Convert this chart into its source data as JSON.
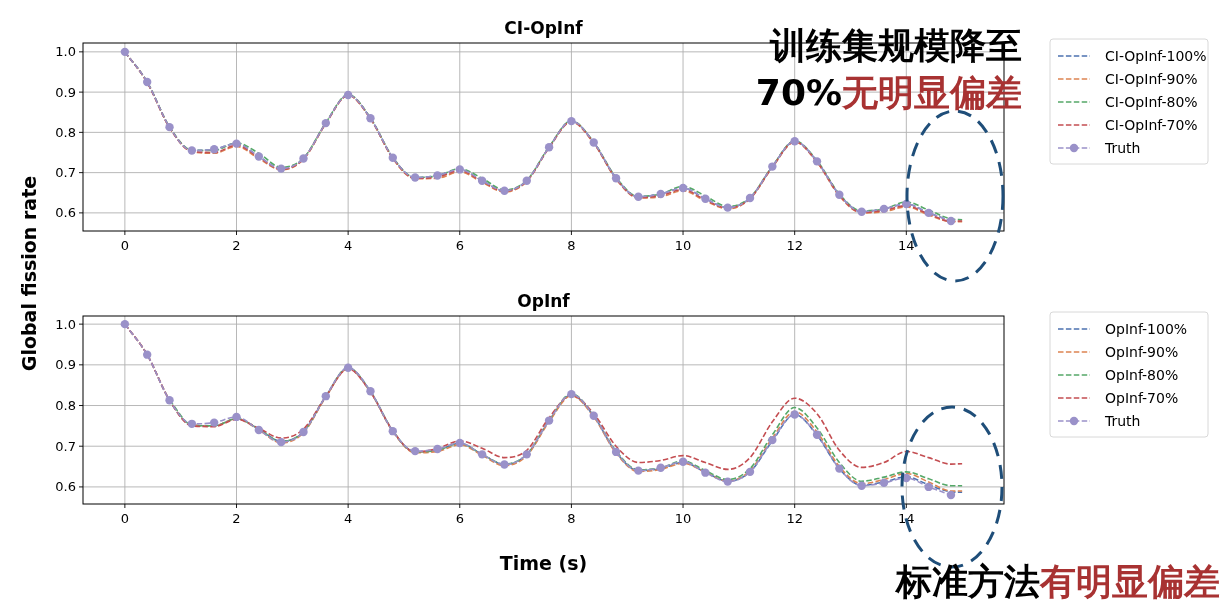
{
  "chart_data": [
    {
      "type": "line",
      "title": "CI-OpInf",
      "ylabel": "Global fission rate",
      "grid": true,
      "legend": "right",
      "line_style": "dashed",
      "xlim": [
        -0.75,
        15.75
      ],
      "ylim": [
        0.555,
        1.022
      ],
      "xticks": [
        0,
        2,
        4,
        6,
        8,
        10,
        12,
        14
      ],
      "yticks": [
        {
          "value": 0.6,
          "label": "0.6"
        },
        {
          "value": 0.7,
          "label": "0.7"
        },
        {
          "value": 0.8,
          "label": "0.8"
        },
        {
          "value": 0.9,
          "label": "0.9"
        },
        {
          "value": 1.0,
          "label": "1.0"
        }
      ],
      "annotations": [
        "训练集规模降至",
        "70%",
        "无明显偏差"
      ],
      "x": [
        0,
        0.4,
        0.8,
        1.2,
        1.6,
        2.0,
        2.4,
        2.8,
        3.2,
        3.6,
        4.0,
        4.4,
        4.8,
        5.2,
        5.6,
        6.0,
        6.4,
        6.8,
        7.2,
        7.6,
        8.0,
        8.4,
        8.8,
        9.2,
        9.6,
        10.0,
        10.4,
        10.8,
        11.2,
        11.6,
        12.0,
        12.4,
        12.8,
        13.2,
        13.6,
        14.0,
        14.4,
        14.8,
        15.0
      ],
      "series": [
        {
          "name": "CI-OpInf-100%",
          "color": "#4c72b0",
          "values": [
            1.0,
            0.925,
            0.813,
            0.755,
            0.758,
            0.772,
            0.74,
            0.71,
            0.735,
            0.823,
            0.893,
            0.835,
            0.737,
            0.688,
            0.693,
            0.708,
            0.68,
            0.655,
            0.68,
            0.763,
            0.828,
            0.775,
            0.686,
            0.64,
            0.647,
            0.662,
            0.635,
            0.613,
            0.637,
            0.715,
            0.778,
            0.728,
            0.645,
            0.603,
            0.61,
            0.622,
            0.6,
            0.58,
            null
          ]
        },
        {
          "name": "CI-OpInf-90%",
          "color": "#dd8452",
          "values": [
            1.0,
            0.924,
            0.812,
            0.752,
            0.748,
            0.765,
            0.735,
            0.707,
            0.733,
            0.822,
            0.892,
            0.834,
            0.735,
            0.685,
            0.686,
            0.702,
            0.676,
            0.652,
            0.678,
            0.762,
            0.826,
            0.773,
            0.684,
            0.637,
            0.64,
            0.655,
            0.63,
            0.61,
            0.635,
            0.713,
            0.776,
            0.726,
            0.642,
            0.6,
            0.603,
            0.615,
            0.595,
            0.578,
            0.578
          ]
        },
        {
          "name": "CI-OpInf-80%",
          "color": "#55a868",
          "values": [
            1.0,
            0.925,
            0.814,
            0.756,
            0.755,
            0.774,
            0.748,
            0.713,
            0.736,
            0.824,
            0.894,
            0.836,
            0.738,
            0.688,
            0.692,
            0.71,
            0.686,
            0.657,
            0.681,
            0.764,
            0.829,
            0.776,
            0.688,
            0.641,
            0.647,
            0.666,
            0.642,
            0.616,
            0.638,
            0.716,
            0.779,
            0.73,
            0.647,
            0.605,
            0.61,
            0.627,
            0.607,
            0.585,
            0.583
          ]
        },
        {
          "name": "CI-OpInf-70%",
          "color": "#c44e52",
          "values": [
            1.0,
            0.924,
            0.812,
            0.753,
            0.75,
            0.768,
            0.738,
            0.708,
            0.734,
            0.822,
            0.892,
            0.834,
            0.736,
            0.686,
            0.689,
            0.705,
            0.678,
            0.654,
            0.679,
            0.762,
            0.827,
            0.774,
            0.685,
            0.638,
            0.643,
            0.658,
            0.632,
            0.612,
            0.636,
            0.714,
            0.777,
            0.727,
            0.644,
            0.601,
            0.606,
            0.618,
            0.597,
            0.579,
            0.58
          ]
        },
        {
          "name": "Truth",
          "color": "#9a91c9",
          "marker": "circle",
          "x": [
            0,
            0.4,
            0.8,
            1.2,
            1.6,
            2.0,
            2.4,
            2.8,
            3.2,
            3.6,
            4.0,
            4.4,
            4.8,
            5.2,
            5.6,
            6.0,
            6.4,
            6.8,
            7.2,
            7.6,
            8.0,
            8.4,
            8.8,
            9.2,
            9.6,
            10.0,
            10.4,
            10.8,
            11.2,
            11.6,
            12.0,
            12.4,
            12.8,
            13.2,
            13.6,
            14.0,
            14.4,
            14.8
          ],
          "values": [
            1.0,
            0.925,
            0.813,
            0.755,
            0.758,
            0.772,
            0.74,
            0.71,
            0.735,
            0.823,
            0.893,
            0.835,
            0.737,
            0.688,
            0.693,
            0.708,
            0.68,
            0.655,
            0.68,
            0.763,
            0.828,
            0.775,
            0.686,
            0.64,
            0.647,
            0.662,
            0.635,
            0.613,
            0.637,
            0.715,
            0.778,
            0.728,
            0.645,
            0.603,
            0.61,
            0.622,
            0.6,
            0.58
          ]
        }
      ]
    },
    {
      "type": "line",
      "title": "OpInf",
      "xlabel": "Time (s)",
      "grid": true,
      "legend": "right",
      "line_style": "dashed",
      "xlim": [
        -0.75,
        15.75
      ],
      "ylim": [
        0.558,
        1.02
      ],
      "xticks": [
        0,
        2,
        4,
        6,
        8,
        10,
        12,
        14
      ],
      "yticks": [
        {
          "value": 0.6,
          "label": "0.6"
        },
        {
          "value": 0.7,
          "label": "0.7"
        },
        {
          "value": 0.8,
          "label": "0.8"
        },
        {
          "value": 0.9,
          "label": "0.9"
        },
        {
          "value": 1.0,
          "label": "1.0"
        }
      ],
      "annotations": [
        "标准方法",
        "有明显偏差"
      ],
      "x": [
        0,
        0.4,
        0.8,
        1.2,
        1.6,
        2.0,
        2.4,
        2.8,
        3.2,
        3.6,
        4.0,
        4.4,
        4.8,
        5.2,
        5.6,
        6.0,
        6.4,
        6.8,
        7.2,
        7.6,
        8.0,
        8.4,
        8.8,
        9.2,
        9.6,
        10.0,
        10.4,
        10.8,
        11.2,
        11.6,
        12.0,
        12.4,
        12.8,
        13.2,
        13.6,
        14.0,
        14.4,
        14.8,
        15.0
      ],
      "series": [
        {
          "name": "OpInf-100%",
          "color": "#4c72b0",
          "values": [
            1.0,
            0.925,
            0.813,
            0.752,
            0.75,
            0.768,
            0.742,
            0.712,
            0.735,
            0.822,
            0.892,
            0.834,
            0.737,
            0.686,
            0.69,
            0.707,
            0.68,
            0.655,
            0.679,
            0.762,
            0.826,
            0.774,
            0.685,
            0.64,
            0.645,
            0.66,
            0.636,
            0.614,
            0.637,
            0.713,
            0.778,
            0.727,
            0.645,
            0.604,
            0.612,
            0.625,
            0.605,
            0.588,
            0.587
          ]
        },
        {
          "name": "OpInf-90%",
          "color": "#dd8452",
          "values": [
            1.0,
            0.925,
            0.813,
            0.752,
            0.75,
            0.768,
            0.74,
            0.708,
            0.733,
            0.821,
            0.891,
            0.833,
            0.736,
            0.684,
            0.687,
            0.704,
            0.678,
            0.652,
            0.677,
            0.76,
            0.824,
            0.772,
            0.683,
            0.638,
            0.643,
            0.658,
            0.636,
            0.614,
            0.64,
            0.72,
            0.785,
            0.735,
            0.65,
            0.608,
            0.618,
            0.633,
            0.612,
            0.59,
            0.59
          ]
        },
        {
          "name": "OpInf-80%",
          "color": "#55a868",
          "values": [
            null,
            null,
            0.813,
            0.752,
            0.75,
            0.768,
            0.742,
            0.712,
            0.736,
            0.823,
            0.893,
            0.835,
            0.738,
            0.686,
            0.69,
            0.707,
            0.68,
            0.656,
            0.68,
            0.764,
            0.829,
            0.776,
            0.688,
            0.642,
            0.647,
            0.664,
            0.64,
            0.618,
            0.645,
            0.728,
            0.795,
            0.745,
            0.66,
            0.614,
            0.624,
            0.637,
            0.62,
            0.603,
            0.603
          ]
        },
        {
          "name": "OpInf-70%",
          "color": "#c44e52",
          "values": [
            1.0,
            0.925,
            0.813,
            0.75,
            0.748,
            0.766,
            0.744,
            0.72,
            0.742,
            0.822,
            0.89,
            0.833,
            0.738,
            0.686,
            0.694,
            0.713,
            0.695,
            0.672,
            0.69,
            0.77,
            0.825,
            0.78,
            0.7,
            0.66,
            0.665,
            0.677,
            0.66,
            0.643,
            0.672,
            0.76,
            0.818,
            0.78,
            0.69,
            0.648,
            0.66,
            0.687,
            0.672,
            0.656,
            0.657
          ]
        },
        {
          "name": "Truth",
          "color": "#9a91c9",
          "marker": "circle",
          "x": [
            0,
            0.4,
            0.8,
            1.2,
            1.6,
            2.0,
            2.4,
            2.8,
            3.2,
            3.6,
            4.0,
            4.4,
            4.8,
            5.2,
            5.6,
            6.0,
            6.4,
            6.8,
            7.2,
            7.6,
            8.0,
            8.4,
            8.8,
            9.2,
            9.6,
            10.0,
            10.4,
            10.8,
            11.2,
            11.6,
            12.0,
            12.4,
            12.8,
            13.2,
            13.6,
            14.0,
            14.4,
            14.8
          ],
          "values": [
            1.0,
            0.925,
            0.813,
            0.755,
            0.758,
            0.772,
            0.74,
            0.71,
            0.735,
            0.823,
            0.893,
            0.835,
            0.737,
            0.688,
            0.693,
            0.708,
            0.68,
            0.655,
            0.68,
            0.763,
            0.828,
            0.775,
            0.686,
            0.64,
            0.647,
            0.662,
            0.635,
            0.613,
            0.637,
            0.715,
            0.778,
            0.728,
            0.645,
            0.603,
            0.61,
            0.622,
            0.6,
            0.58
          ]
        }
      ]
    }
  ]
}
